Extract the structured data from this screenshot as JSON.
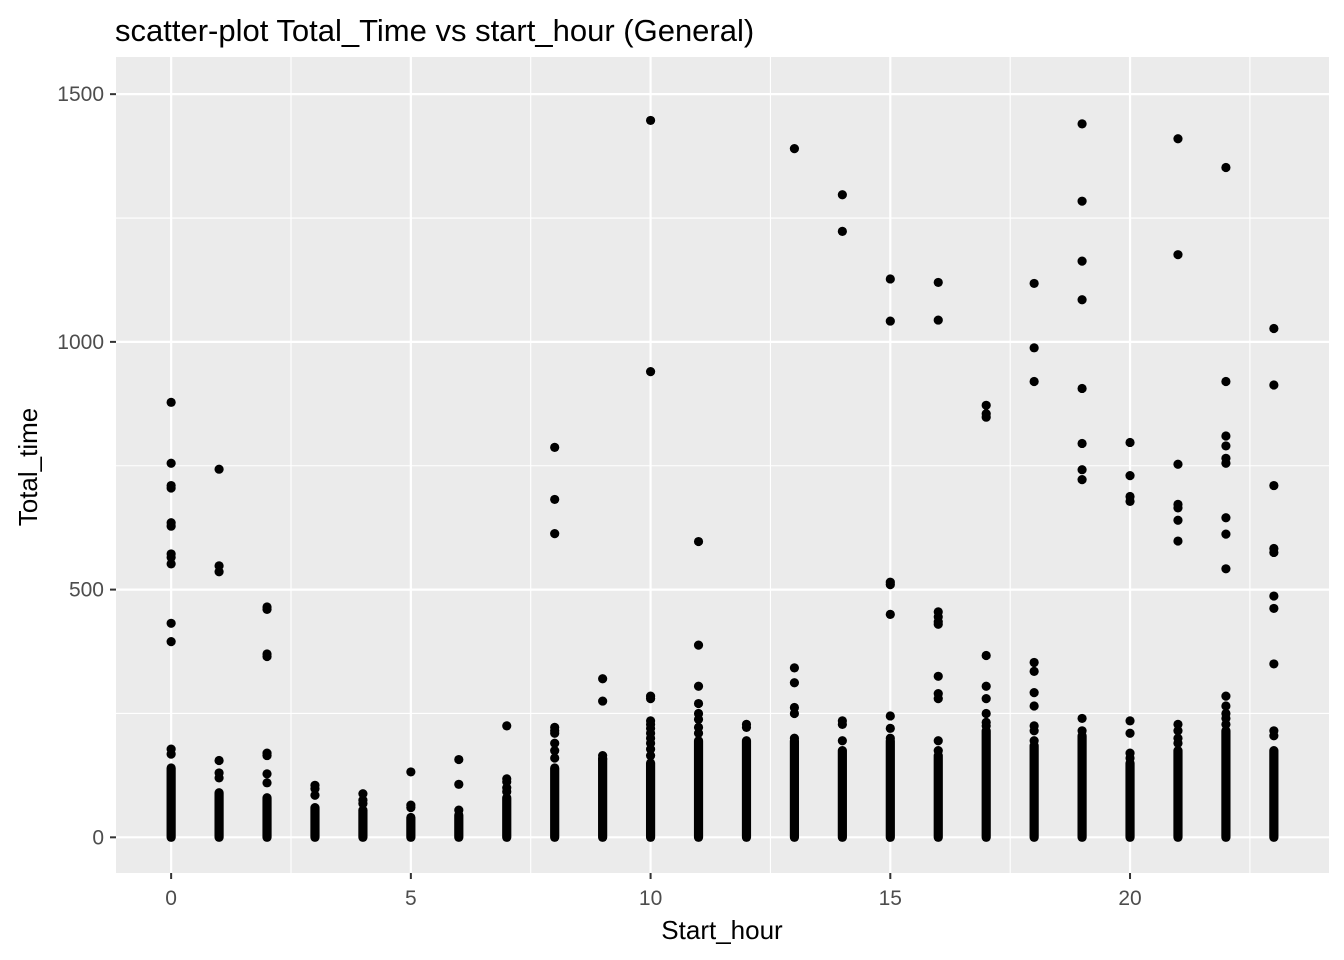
{
  "chart_data": {
    "type": "scatter",
    "title": "scatter-plot Total_Time vs start_hour (General)",
    "xlabel": "Start_hour",
    "ylabel": "Total_time",
    "xlim": [
      -1.15,
      24.15
    ],
    "ylim": [
      -72,
      1575
    ],
    "x_ticks": [
      0,
      5,
      10,
      15,
      20
    ],
    "y_ticks": [
      0,
      500,
      1000,
      1500
    ],
    "x_tick_labels": [
      "0",
      "5",
      "10",
      "15",
      "20"
    ],
    "y_tick_labels": [
      "0",
      "500",
      "1000",
      "1500"
    ],
    "grid": true,
    "legend": "none",
    "colors": {
      "panel": "#ebebeb",
      "grid": "#ffffff",
      "point": "#000000",
      "tick": "#4d4d4d"
    },
    "dense_columns": [
      {
        "x": 0,
        "y_min": 0,
        "y_max": 140
      },
      {
        "x": 1,
        "y_min": 0,
        "y_max": 90
      },
      {
        "x": 2,
        "y_min": 0,
        "y_max": 80
      },
      {
        "x": 3,
        "y_min": 0,
        "y_max": 60
      },
      {
        "x": 4,
        "y_min": 0,
        "y_max": 55
      },
      {
        "x": 5,
        "y_min": 0,
        "y_max": 40
      },
      {
        "x": 6,
        "y_min": 0,
        "y_max": 45
      },
      {
        "x": 7,
        "y_min": 0,
        "y_max": 80
      },
      {
        "x": 8,
        "y_min": 0,
        "y_max": 140
      },
      {
        "x": 9,
        "y_min": 0,
        "y_max": 160
      },
      {
        "x": 10,
        "y_min": 0,
        "y_max": 150
      },
      {
        "x": 11,
        "y_min": 0,
        "y_max": 195
      },
      {
        "x": 12,
        "y_min": 0,
        "y_max": 195
      },
      {
        "x": 13,
        "y_min": 0,
        "y_max": 195
      },
      {
        "x": 14,
        "y_min": 0,
        "y_max": 175
      },
      {
        "x": 15,
        "y_min": 0,
        "y_max": 195
      },
      {
        "x": 16,
        "y_min": 0,
        "y_max": 165
      },
      {
        "x": 17,
        "y_min": 0,
        "y_max": 215
      },
      {
        "x": 18,
        "y_min": 0,
        "y_max": 185
      },
      {
        "x": 19,
        "y_min": 0,
        "y_max": 205
      },
      {
        "x": 20,
        "y_min": 0,
        "y_max": 150
      },
      {
        "x": 21,
        "y_min": 0,
        "y_max": 175
      },
      {
        "x": 22,
        "y_min": 0,
        "y_max": 215
      },
      {
        "x": 23,
        "y_min": 0,
        "y_max": 175
      }
    ],
    "points": [
      {
        "x": 0,
        "y": 878
      },
      {
        "x": 0,
        "y": 755
      },
      {
        "x": 0,
        "y": 710
      },
      {
        "x": 0,
        "y": 705
      },
      {
        "x": 0,
        "y": 635
      },
      {
        "x": 0,
        "y": 628
      },
      {
        "x": 0,
        "y": 572
      },
      {
        "x": 0,
        "y": 565
      },
      {
        "x": 0,
        "y": 552
      },
      {
        "x": 0,
        "y": 432
      },
      {
        "x": 0,
        "y": 395
      },
      {
        "x": 0,
        "y": 178
      },
      {
        "x": 0,
        "y": 168
      },
      {
        "x": 1,
        "y": 743
      },
      {
        "x": 1,
        "y": 548
      },
      {
        "x": 1,
        "y": 536
      },
      {
        "x": 1,
        "y": 155
      },
      {
        "x": 1,
        "y": 130
      },
      {
        "x": 1,
        "y": 120
      },
      {
        "x": 2,
        "y": 465
      },
      {
        "x": 2,
        "y": 460
      },
      {
        "x": 2,
        "y": 370
      },
      {
        "x": 2,
        "y": 365
      },
      {
        "x": 2,
        "y": 170
      },
      {
        "x": 2,
        "y": 165
      },
      {
        "x": 2,
        "y": 128
      },
      {
        "x": 2,
        "y": 110
      },
      {
        "x": 3,
        "y": 105
      },
      {
        "x": 3,
        "y": 98
      },
      {
        "x": 3,
        "y": 85
      },
      {
        "x": 4,
        "y": 88
      },
      {
        "x": 4,
        "y": 75
      },
      {
        "x": 4,
        "y": 68
      },
      {
        "x": 5,
        "y": 132
      },
      {
        "x": 5,
        "y": 65
      },
      {
        "x": 5,
        "y": 60
      },
      {
        "x": 6,
        "y": 157
      },
      {
        "x": 6,
        "y": 107
      },
      {
        "x": 6,
        "y": 55
      },
      {
        "x": 7,
        "y": 225
      },
      {
        "x": 7,
        "y": 118
      },
      {
        "x": 7,
        "y": 112
      },
      {
        "x": 7,
        "y": 100
      },
      {
        "x": 7,
        "y": 92
      },
      {
        "x": 8,
        "y": 787
      },
      {
        "x": 8,
        "y": 682
      },
      {
        "x": 8,
        "y": 613
      },
      {
        "x": 8,
        "y": 222
      },
      {
        "x": 8,
        "y": 215
      },
      {
        "x": 8,
        "y": 210
      },
      {
        "x": 8,
        "y": 190
      },
      {
        "x": 8,
        "y": 175
      },
      {
        "x": 8,
        "y": 160
      },
      {
        "x": 9,
        "y": 320
      },
      {
        "x": 9,
        "y": 275
      },
      {
        "x": 9,
        "y": 165
      },
      {
        "x": 9,
        "y": 158
      },
      {
        "x": 10,
        "y": 1447
      },
      {
        "x": 10,
        "y": 940
      },
      {
        "x": 10,
        "y": 285
      },
      {
        "x": 10,
        "y": 280
      },
      {
        "x": 10,
        "y": 235
      },
      {
        "x": 10,
        "y": 228
      },
      {
        "x": 10,
        "y": 220
      },
      {
        "x": 10,
        "y": 210
      },
      {
        "x": 10,
        "y": 200
      },
      {
        "x": 10,
        "y": 190
      },
      {
        "x": 10,
        "y": 178
      },
      {
        "x": 10,
        "y": 165
      },
      {
        "x": 11,
        "y": 597
      },
      {
        "x": 11,
        "y": 388
      },
      {
        "x": 11,
        "y": 305
      },
      {
        "x": 11,
        "y": 270
      },
      {
        "x": 11,
        "y": 250
      },
      {
        "x": 11,
        "y": 238
      },
      {
        "x": 11,
        "y": 222
      },
      {
        "x": 11,
        "y": 210
      },
      {
        "x": 12,
        "y": 228
      },
      {
        "x": 12,
        "y": 222
      },
      {
        "x": 13,
        "y": 1390
      },
      {
        "x": 13,
        "y": 342
      },
      {
        "x": 13,
        "y": 312
      },
      {
        "x": 13,
        "y": 262
      },
      {
        "x": 13,
        "y": 250
      },
      {
        "x": 13,
        "y": 200
      },
      {
        "x": 14,
        "y": 1297
      },
      {
        "x": 14,
        "y": 1223
      },
      {
        "x": 14,
        "y": 235
      },
      {
        "x": 14,
        "y": 228
      },
      {
        "x": 14,
        "y": 195
      },
      {
        "x": 15,
        "y": 1127
      },
      {
        "x": 15,
        "y": 1042
      },
      {
        "x": 15,
        "y": 515
      },
      {
        "x": 15,
        "y": 510
      },
      {
        "x": 15,
        "y": 450
      },
      {
        "x": 15,
        "y": 245
      },
      {
        "x": 15,
        "y": 220
      },
      {
        "x": 15,
        "y": 200
      },
      {
        "x": 16,
        "y": 1120
      },
      {
        "x": 16,
        "y": 1044
      },
      {
        "x": 16,
        "y": 455
      },
      {
        "x": 16,
        "y": 445
      },
      {
        "x": 16,
        "y": 435
      },
      {
        "x": 16,
        "y": 430
      },
      {
        "x": 16,
        "y": 325
      },
      {
        "x": 16,
        "y": 290
      },
      {
        "x": 16,
        "y": 280
      },
      {
        "x": 16,
        "y": 195
      },
      {
        "x": 16,
        "y": 175
      },
      {
        "x": 17,
        "y": 872
      },
      {
        "x": 17,
        "y": 855
      },
      {
        "x": 17,
        "y": 848
      },
      {
        "x": 17,
        "y": 367
      },
      {
        "x": 17,
        "y": 305
      },
      {
        "x": 17,
        "y": 280
      },
      {
        "x": 17,
        "y": 250
      },
      {
        "x": 17,
        "y": 232
      },
      {
        "x": 17,
        "y": 225
      },
      {
        "x": 18,
        "y": 1118
      },
      {
        "x": 18,
        "y": 988
      },
      {
        "x": 18,
        "y": 920
      },
      {
        "x": 18,
        "y": 353
      },
      {
        "x": 18,
        "y": 335
      },
      {
        "x": 18,
        "y": 292
      },
      {
        "x": 18,
        "y": 265
      },
      {
        "x": 18,
        "y": 225
      },
      {
        "x": 18,
        "y": 215
      },
      {
        "x": 18,
        "y": 195
      },
      {
        "x": 19,
        "y": 1440
      },
      {
        "x": 19,
        "y": 1284
      },
      {
        "x": 19,
        "y": 1163
      },
      {
        "x": 19,
        "y": 1085
      },
      {
        "x": 19,
        "y": 906
      },
      {
        "x": 19,
        "y": 795
      },
      {
        "x": 19,
        "y": 742
      },
      {
        "x": 19,
        "y": 722
      },
      {
        "x": 19,
        "y": 240
      },
      {
        "x": 19,
        "y": 215
      },
      {
        "x": 20,
        "y": 797
      },
      {
        "x": 20,
        "y": 730
      },
      {
        "x": 20,
        "y": 688
      },
      {
        "x": 20,
        "y": 678
      },
      {
        "x": 20,
        "y": 235
      },
      {
        "x": 20,
        "y": 210
      },
      {
        "x": 20,
        "y": 170
      },
      {
        "x": 20,
        "y": 160
      },
      {
        "x": 21,
        "y": 1410
      },
      {
        "x": 21,
        "y": 1176
      },
      {
        "x": 21,
        "y": 753
      },
      {
        "x": 21,
        "y": 672
      },
      {
        "x": 21,
        "y": 665
      },
      {
        "x": 21,
        "y": 640
      },
      {
        "x": 21,
        "y": 598
      },
      {
        "x": 21,
        "y": 228
      },
      {
        "x": 21,
        "y": 215
      },
      {
        "x": 21,
        "y": 200
      },
      {
        "x": 21,
        "y": 190
      },
      {
        "x": 22,
        "y": 1352
      },
      {
        "x": 22,
        "y": 920
      },
      {
        "x": 22,
        "y": 810
      },
      {
        "x": 22,
        "y": 790
      },
      {
        "x": 22,
        "y": 765
      },
      {
        "x": 22,
        "y": 755
      },
      {
        "x": 22,
        "y": 645
      },
      {
        "x": 22,
        "y": 612
      },
      {
        "x": 22,
        "y": 542
      },
      {
        "x": 22,
        "y": 285
      },
      {
        "x": 22,
        "y": 265
      },
      {
        "x": 22,
        "y": 250
      },
      {
        "x": 22,
        "y": 240
      },
      {
        "x": 22,
        "y": 228
      },
      {
        "x": 23,
        "y": 1027
      },
      {
        "x": 23,
        "y": 913
      },
      {
        "x": 23,
        "y": 710
      },
      {
        "x": 23,
        "y": 583
      },
      {
        "x": 23,
        "y": 575
      },
      {
        "x": 23,
        "y": 487
      },
      {
        "x": 23,
        "y": 462
      },
      {
        "x": 23,
        "y": 350
      },
      {
        "x": 23,
        "y": 215
      },
      {
        "x": 23,
        "y": 205
      }
    ]
  }
}
